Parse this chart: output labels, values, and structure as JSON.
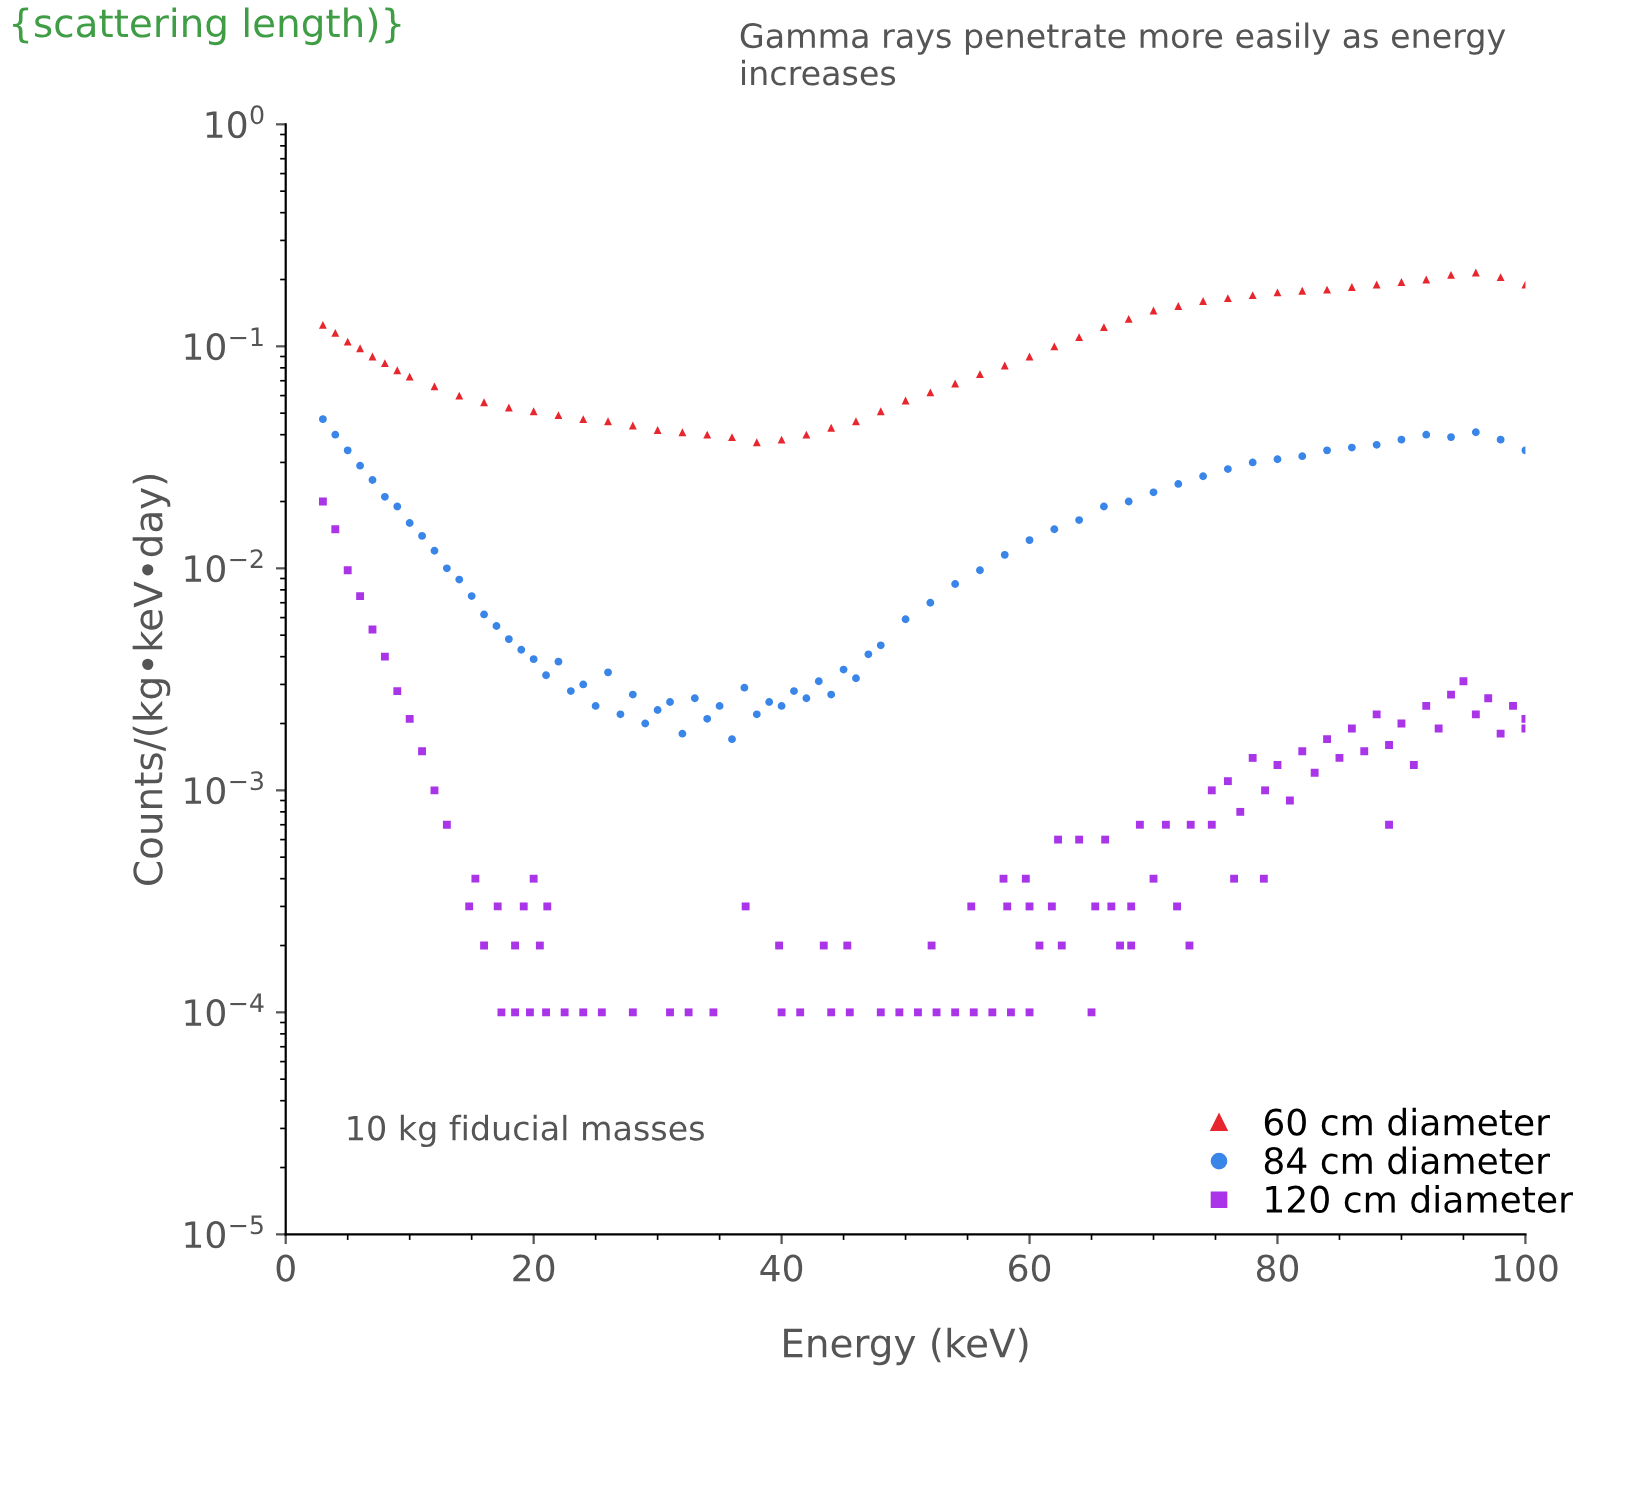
{
  "chart_data": {
    "type": "scatter",
    "xlabel": "Energy (keV)",
    "ylabel": "Counts/(kg•keV•day)",
    "log": "y",
    "xlim": [
      0,
      100
    ],
    "ylim": [
      1e-05,
      1
    ],
    "xticks": [
      0,
      20,
      40,
      60,
      80,
      100
    ],
    "yticks": [
      {
        "value": 1e-05,
        "label": "10$^{−5}$"
      },
      {
        "value": 0.0001,
        "label": "10$^{−4}$"
      },
      {
        "value": 0.001,
        "label": "10$^{−3}$"
      },
      {
        "value": 0.01,
        "label": "10$^{−2}$"
      },
      {
        "value": 0.1,
        "label": "10$^{−1}$"
      },
      {
        "value": 1,
        "label": "10$^{0}$"
      }
    ],
    "grid": false,
    "legend": "bottom right",
    "annotations": [
      "{scattering length)}",
      "Gamma rays penetrate more easily as energy increases",
      "10 kg fiducial masses"
    ],
    "series": [
      {
        "name": "60 cm diameter",
        "color": "#e8262e",
        "marker": "triangle",
        "x": [
          3,
          4,
          5,
          6,
          7,
          8,
          9,
          10,
          12,
          14,
          16,
          18,
          20,
          22,
          24,
          26,
          28,
          30,
          32,
          34,
          36,
          38,
          40,
          42,
          44,
          46,
          48,
          50,
          52,
          54,
          56,
          58,
          60,
          62,
          64,
          66,
          68,
          70,
          72,
          74,
          76,
          78,
          80,
          82,
          84,
          86,
          88,
          90,
          92,
          94,
          96,
          98,
          100
        ],
        "values": [
          0.125,
          0.115,
          0.105,
          0.098,
          0.09,
          0.084,
          0.078,
          0.073,
          0.066,
          0.06,
          0.056,
          0.053,
          0.051,
          0.049,
          0.047,
          0.046,
          0.044,
          0.042,
          0.041,
          0.04,
          0.039,
          0.037,
          0.038,
          0.04,
          0.043,
          0.046,
          0.051,
          0.057,
          0.062,
          0.068,
          0.075,
          0.082,
          0.09,
          0.1,
          0.11,
          0.122,
          0.133,
          0.145,
          0.152,
          0.16,
          0.165,
          0.17,
          0.175,
          0.178,
          0.18,
          0.185,
          0.19,
          0.195,
          0.2,
          0.21,
          0.215,
          0.205,
          0.19
        ]
      },
      {
        "name": "84 cm diameter",
        "color": "#3a86e8",
        "marker": "circle",
        "x": [
          3,
          4,
          5,
          6,
          7,
          8,
          9,
          10,
          11,
          12,
          13,
          14,
          15,
          16,
          17,
          18,
          19,
          20,
          21,
          22,
          23,
          24,
          25,
          26,
          27,
          28,
          29,
          30,
          31,
          32,
          33,
          34,
          35,
          36,
          37,
          38,
          39,
          40,
          41,
          42,
          43,
          44,
          45,
          46,
          47,
          48,
          50,
          52,
          54,
          56,
          58,
          60,
          62,
          64,
          66,
          68,
          70,
          72,
          74,
          76,
          78,
          80,
          82,
          84,
          86,
          88,
          90,
          92,
          94,
          96,
          98,
          100
        ],
        "values": [
          0.047,
          0.04,
          0.034,
          0.029,
          0.025,
          0.021,
          0.019,
          0.016,
          0.014,
          0.012,
          0.01,
          0.0089,
          0.0075,
          0.0062,
          0.0055,
          0.0048,
          0.0043,
          0.0039,
          0.0033,
          0.0038,
          0.0028,
          0.003,
          0.0024,
          0.0034,
          0.0022,
          0.0027,
          0.002,
          0.0023,
          0.0025,
          0.0018,
          0.0026,
          0.0021,
          0.0024,
          0.0017,
          0.0029,
          0.0022,
          0.0025,
          0.0024,
          0.0028,
          0.0026,
          0.0031,
          0.0027,
          0.0035,
          0.0032,
          0.0041,
          0.0045,
          0.0059,
          0.007,
          0.0085,
          0.0098,
          0.0115,
          0.0134,
          0.015,
          0.0165,
          0.019,
          0.02,
          0.022,
          0.024,
          0.026,
          0.028,
          0.03,
          0.031,
          0.032,
          0.034,
          0.035,
          0.036,
          0.038,
          0.04,
          0.039,
          0.041,
          0.038,
          0.034
        ]
      },
      {
        "name": "120 cm diameter",
        "color": "#a934e8",
        "marker": "square",
        "x": [
          3,
          4,
          5,
          6,
          7,
          8,
          9,
          10,
          11,
          12,
          13,
          15.3,
          20,
          14.8,
          17.1,
          19.2,
          21.1,
          37.1,
          55.3,
          58.2,
          60,
          61.8,
          65.3,
          66.6,
          68.2,
          71.9,
          16,
          18.5,
          20.5,
          39.8,
          43.4,
          45.3,
          52.1,
          60.8,
          62.6,
          67.3,
          68.2,
          72.9,
          17.4,
          18.5,
          19.7,
          21,
          22.5,
          24,
          25.5,
          28,
          31,
          32.5,
          34.5,
          40,
          41.5,
          44,
          45.5,
          48,
          49.5,
          51,
          52.5,
          54,
          55.5,
          57,
          58.5,
          60,
          65,
          57.9,
          59.7,
          70,
          76.5,
          78.9,
          62.3,
          64,
          66.1,
          68.9,
          71,
          73,
          74.7,
          74.7,
          76,
          77,
          78,
          79,
          80,
          81,
          82,
          83,
          84,
          85,
          86,
          87,
          88,
          89,
          89,
          90,
          91,
          92,
          93,
          94,
          95,
          96,
          97,
          98,
          99,
          100,
          100
        ],
        "values": [
          0.02,
          0.015,
          0.0098,
          0.0075,
          0.0053,
          0.004,
          0.0028,
          0.0021,
          0.0015,
          0.001,
          0.0007,
          0.0004,
          0.0004,
          0.0003,
          0.0003,
          0.0003,
          0.0003,
          0.0003,
          0.0003,
          0.0003,
          0.0003,
          0.0003,
          0.0003,
          0.0003,
          0.0003,
          0.0003,
          0.0002,
          0.0002,
          0.0002,
          0.0002,
          0.0002,
          0.0002,
          0.0002,
          0.0002,
          0.0002,
          0.0002,
          0.0002,
          0.0002,
          0.0001,
          0.0001,
          0.0001,
          0.0001,
          0.0001,
          0.0001,
          0.0001,
          0.0001,
          0.0001,
          0.0001,
          0.0001,
          0.0001,
          0.0001,
          0.0001,
          0.0001,
          0.0001,
          0.0001,
          0.0001,
          0.0001,
          0.0001,
          0.0001,
          0.0001,
          0.0001,
          0.0001,
          0.0001,
          0.0004,
          0.0004,
          0.0004,
          0.0004,
          0.0004,
          0.0006,
          0.0006,
          0.0006,
          0.0007,
          0.0007,
          0.0007,
          0.0007,
          0.001,
          0.0011,
          0.0008,
          0.0014,
          0.001,
          0.0013,
          0.0009,
          0.0015,
          0.0012,
          0.0017,
          0.0014,
          0.0019,
          0.0015,
          0.0022,
          0.0016,
          0.0007,
          0.002,
          0.0013,
          0.0024,
          0.0019,
          0.0027,
          0.0031,
          0.0022,
          0.0026,
          0.0018,
          0.0024,
          0.0019,
          0.0021
        ]
      }
    ]
  }
}
